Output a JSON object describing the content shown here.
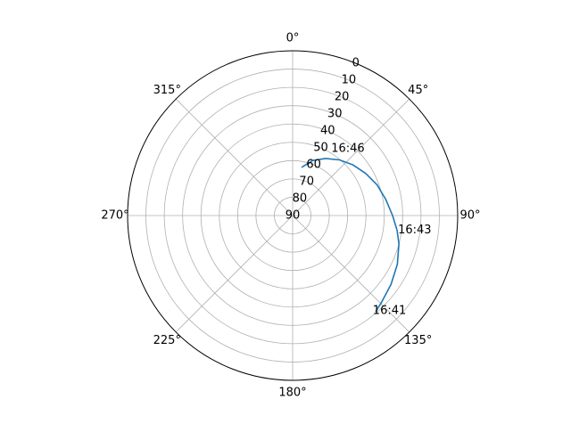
{
  "chart_data": {
    "type": "line",
    "projection": "polar",
    "theta_zero_location": "top",
    "theta_direction": "clockwise",
    "r_inverted": true,
    "rlim": [
      90,
      0
    ],
    "r_ticks": [
      "0",
      "10",
      "20",
      "30",
      "40",
      "50",
      "60",
      "70",
      "80",
      "90"
    ],
    "theta_ticks": [
      "0°",
      "45°",
      "90°",
      "135°",
      "180°",
      "225°",
      "270°",
      "315°"
    ],
    "grid": true,
    "series": [
      {
        "color": "#1f77b4",
        "points": [
          {
            "theta_deg": 139.0,
            "r": 20.8
          },
          {
            "theta_deg": 135.0,
            "r": 22.0
          },
          {
            "theta_deg": 125.0,
            "r": 24.5
          },
          {
            "theta_deg": 115.0,
            "r": 27.0
          },
          {
            "theta_deg": 105.0,
            "r": 30.0
          },
          {
            "theta_deg": 98.0,
            "r": 32.5
          },
          {
            "theta_deg": 90.0,
            "r": 35.5
          },
          {
            "theta_deg": 80.0,
            "r": 38.5
          },
          {
            "theta_deg": 70.0,
            "r": 41.0
          },
          {
            "theta_deg": 60.0,
            "r": 44.0
          },
          {
            "theta_deg": 50.0,
            "r": 47.0
          },
          {
            "theta_deg": 40.0,
            "r": 50.3
          },
          {
            "theta_deg": 30.0,
            "r": 54.0
          },
          {
            "theta_deg": 20.0,
            "r": 58.0
          },
          {
            "theta_deg": 11.0,
            "r": 63.0
          }
        ]
      }
    ],
    "annotations": [
      {
        "text": "16:41",
        "theta_deg": 140.0,
        "r": 22.0
      },
      {
        "text": "16:43",
        "theta_deg": 98.0,
        "r": 32.0
      },
      {
        "text": "16:46",
        "theta_deg": 30.0,
        "r": 48.0
      }
    ]
  }
}
